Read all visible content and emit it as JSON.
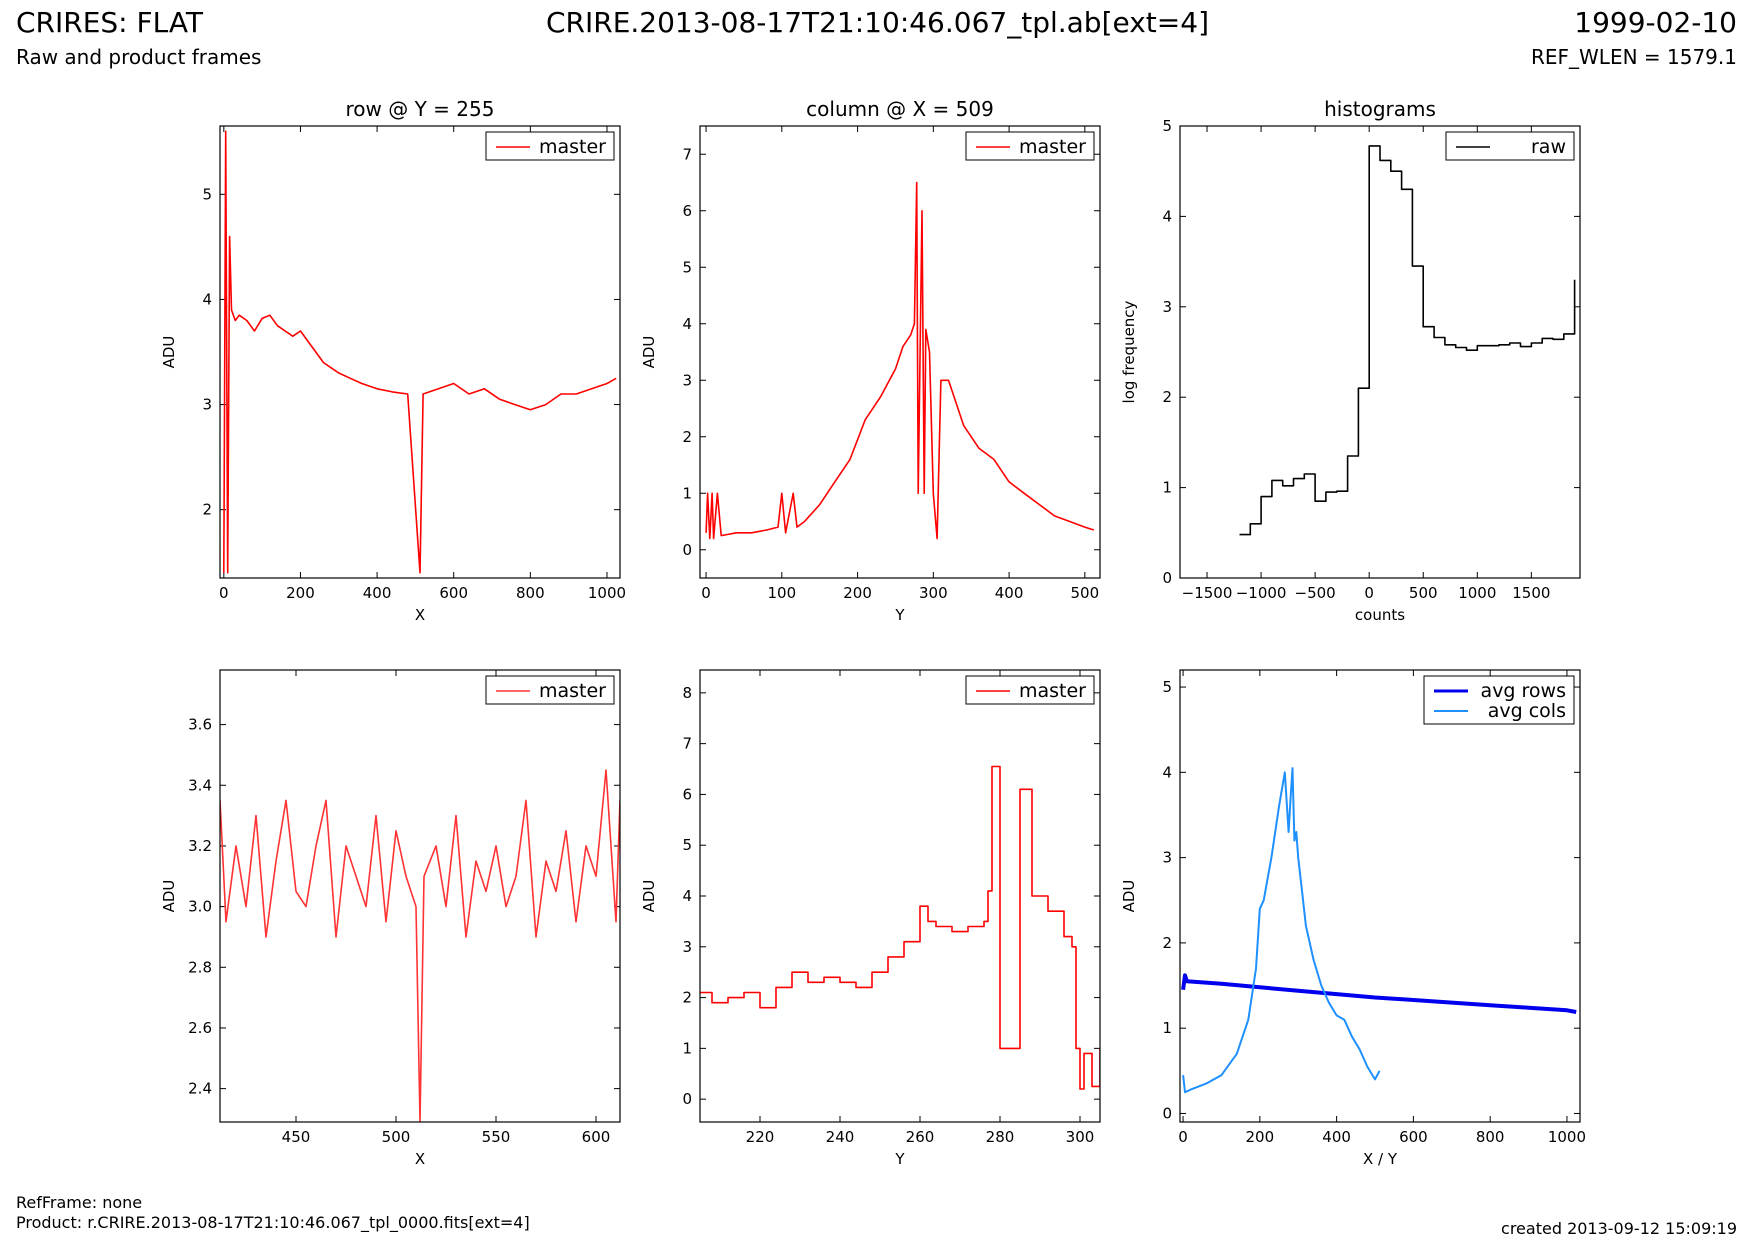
{
  "header": {
    "title_left": "CRIRES: FLAT",
    "subtitle_left": "Raw and product frames",
    "title_center": "CRIRE.2013-08-17T21:10:46.067_tpl.ab[ext=4]",
    "title_right": "1999-02-10",
    "subtitle_right": "REF_WLEN = 1579.1"
  },
  "footer": {
    "refframe": "RefFrame: none",
    "product": "Product: r.CRIRE.2013-08-17T21:10:46.067_tpl_0000.fits[ext=4]",
    "created": "created 2013-09-12 15:09:19"
  },
  "colors": {
    "red": "#ff0000",
    "light_red": "#ff3333",
    "blue": "#0000ee",
    "light_blue": "#1e90ff",
    "black": "#000000"
  },
  "chart_data": [
    {
      "type": "line",
      "title": "row @ Y = 255",
      "xlabel": "X",
      "ylabel": "ADU",
      "xlim": [
        -10,
        1034
      ],
      "ylim": [
        1.35,
        5.65
      ],
      "xticks": [
        0,
        200,
        400,
        600,
        800,
        1000
      ],
      "yticks": [
        2,
        3,
        4,
        5
      ],
      "legend": "top-right",
      "series": [
        {
          "name": "master",
          "color": "#ff0000",
          "x": [
            0,
            5,
            10,
            15,
            20,
            30,
            40,
            60,
            80,
            100,
            120,
            140,
            160,
            180,
            200,
            220,
            240,
            260,
            280,
            300,
            330,
            360,
            400,
            440,
            480,
            512,
            520,
            560,
            600,
            640,
            680,
            720,
            760,
            800,
            840,
            880,
            920,
            960,
            1000,
            1024
          ],
          "y": [
            1.4,
            5.6,
            1.4,
            4.6,
            3.9,
            3.8,
            3.85,
            3.8,
            3.7,
            3.82,
            3.85,
            3.75,
            3.7,
            3.65,
            3.7,
            3.6,
            3.5,
            3.4,
            3.35,
            3.3,
            3.25,
            3.2,
            3.15,
            3.12,
            3.1,
            1.4,
            3.1,
            3.15,
            3.2,
            3.1,
            3.15,
            3.05,
            3.0,
            2.95,
            3.0,
            3.1,
            3.1,
            3.15,
            3.2,
            3.25
          ]
        }
      ]
    },
    {
      "type": "line",
      "title": "column @ X = 509",
      "xlabel": "Y",
      "ylabel": "ADU",
      "xlim": [
        -8,
        520
      ],
      "ylim": [
        -0.5,
        7.5
      ],
      "xticks": [
        0,
        100,
        200,
        300,
        400,
        500
      ],
      "yticks": [
        0,
        1,
        2,
        3,
        4,
        5,
        6,
        7
      ],
      "legend": "top-right",
      "series": [
        {
          "name": "master",
          "color": "#ff0000",
          "x": [
            0,
            2,
            5,
            8,
            10,
            15,
            20,
            40,
            60,
            80,
            95,
            100,
            105,
            115,
            120,
            130,
            150,
            170,
            190,
            210,
            230,
            250,
            260,
            270,
            275,
            278,
            280,
            285,
            288,
            290,
            295,
            300,
            305,
            310,
            320,
            330,
            340,
            360,
            380,
            400,
            420,
            440,
            460,
            480,
            500,
            512
          ],
          "y": [
            0.3,
            1.0,
            0.2,
            1.0,
            0.2,
            1.0,
            0.25,
            0.3,
            0.3,
            0.35,
            0.4,
            1.0,
            0.3,
            1.0,
            0.4,
            0.5,
            0.8,
            1.2,
            1.6,
            2.3,
            2.7,
            3.2,
            3.6,
            3.8,
            4.0,
            6.5,
            1.0,
            6.0,
            1.0,
            3.9,
            3.5,
            1.0,
            0.2,
            3.0,
            3.0,
            2.6,
            2.2,
            1.8,
            1.6,
            1.2,
            1.0,
            0.8,
            0.6,
            0.5,
            0.4,
            0.35
          ]
        }
      ]
    },
    {
      "type": "line",
      "title": "histograms",
      "xlabel": "counts",
      "ylabel": "log frequency",
      "xlim": [
        -1750,
        1950
      ],
      "ylim": [
        0,
        5
      ],
      "xticks": [
        -1500,
        -1000,
        -500,
        0,
        500,
        1000,
        1500
      ],
      "yticks": [
        0,
        1,
        2,
        3,
        4,
        5
      ],
      "legend": "top-right",
      "series": [
        {
          "name": "raw",
          "color": "#000000",
          "step": true,
          "x": [
            -1200,
            -1100,
            -1000,
            -900,
            -800,
            -700,
            -600,
            -500,
            -400,
            -300,
            -200,
            -100,
            0,
            100,
            200,
            300,
            400,
            500,
            600,
            700,
            800,
            900,
            1000,
            1100,
            1200,
            1300,
            1400,
            1500,
            1600,
            1700,
            1800,
            1900
          ],
          "y": [
            0.48,
            0.6,
            0.9,
            1.08,
            1.02,
            1.1,
            1.15,
            0.85,
            0.95,
            0.96,
            1.35,
            2.1,
            4.78,
            4.62,
            4.5,
            4.3,
            3.45,
            2.78,
            2.66,
            2.58,
            2.55,
            2.52,
            2.57,
            2.57,
            2.58,
            2.6,
            2.56,
            2.6,
            2.65,
            2.64,
            2.7,
            3.3
          ]
        }
      ]
    },
    {
      "type": "line",
      "title": "",
      "xlabel": "X",
      "ylabel": "ADU",
      "xlim": [
        412,
        612
      ],
      "ylim": [
        2.29,
        3.78
      ],
      "xticks": [
        450,
        500,
        550,
        600
      ],
      "yticks": [
        2.4,
        2.6,
        2.8,
        3.0,
        3.2,
        3.4,
        3.6
      ],
      "legend": "top-right",
      "series": [
        {
          "name": "master",
          "color": "#ff3333",
          "x": [
            412,
            415,
            420,
            425,
            430,
            435,
            440,
            445,
            450,
            455,
            460,
            465,
            470,
            475,
            480,
            485,
            490,
            495,
            500,
            505,
            510,
            512,
            514,
            520,
            525,
            530,
            535,
            540,
            545,
            550,
            555,
            560,
            565,
            570,
            575,
            580,
            585,
            590,
            595,
            600,
            605,
            610,
            612
          ],
          "y": [
            3.35,
            2.95,
            3.2,
            3.0,
            3.3,
            2.9,
            3.15,
            3.35,
            3.05,
            3.0,
            3.2,
            3.35,
            2.9,
            3.2,
            3.1,
            3.0,
            3.3,
            2.95,
            3.25,
            3.1,
            3.0,
            2.29,
            3.1,
            3.2,
            3.0,
            3.3,
            2.9,
            3.15,
            3.05,
            3.2,
            3.0,
            3.1,
            3.35,
            2.9,
            3.15,
            3.05,
            3.25,
            2.95,
            3.2,
            3.1,
            3.45,
            2.95,
            3.35
          ]
        }
      ]
    },
    {
      "type": "line",
      "title": "",
      "xlabel": "Y",
      "ylabel": "ADU",
      "xlim": [
        205,
        305
      ],
      "ylim": [
        -0.45,
        8.45
      ],
      "xticks": [
        220,
        240,
        260,
        280,
        300
      ],
      "yticks": [
        0,
        1,
        2,
        3,
        4,
        5,
        6,
        7,
        8
      ],
      "legend": "top-right",
      "series": [
        {
          "name": "master",
          "color": "#ff0000",
          "step": true,
          "x": [
            205,
            208,
            212,
            216,
            220,
            224,
            228,
            232,
            236,
            240,
            244,
            248,
            252,
            256,
            260,
            262,
            264,
            268,
            272,
            276,
            277,
            278,
            280,
            284,
            285,
            288,
            292,
            296,
            298,
            299,
            300,
            301,
            303,
            305
          ],
          "y": [
            2.1,
            1.9,
            2.0,
            2.1,
            1.8,
            2.2,
            2.5,
            2.3,
            2.4,
            2.3,
            2.2,
            2.5,
            2.8,
            3.1,
            3.8,
            3.5,
            3.4,
            3.3,
            3.4,
            3.5,
            4.1,
            6.55,
            1.0,
            1.0,
            6.1,
            4.0,
            3.7,
            3.2,
            3.0,
            1.0,
            0.2,
            0.9,
            0.25,
            1.0
          ]
        }
      ]
    },
    {
      "type": "line",
      "title": "",
      "xlabel": "X / Y",
      "ylabel": "ADU",
      "xlim": [
        -8,
        1034
      ],
      "ylim": [
        -0.1,
        5.2
      ],
      "xticks": [
        0,
        200,
        400,
        600,
        800,
        1000
      ],
      "yticks": [
        0,
        1,
        2,
        3,
        4,
        5
      ],
      "legend": "top-right",
      "series": [
        {
          "name": "avg rows",
          "color": "#0000ee",
          "width": 4,
          "x": [
            0,
            5,
            10,
            100,
            200,
            300,
            400,
            500,
            600,
            700,
            800,
            900,
            1000,
            1024
          ],
          "y": [
            1.45,
            1.62,
            1.55,
            1.52,
            1.48,
            1.44,
            1.4,
            1.36,
            1.33,
            1.3,
            1.27,
            1.24,
            1.21,
            1.19
          ]
        },
        {
          "name": "avg cols",
          "color": "#1e90ff",
          "width": 2,
          "x": [
            0,
            5,
            20,
            60,
            100,
            140,
            170,
            190,
            200,
            210,
            230,
            250,
            265,
            275,
            280,
            285,
            290,
            295,
            300,
            310,
            320,
            340,
            360,
            380,
            400,
            420,
            440,
            460,
            480,
            500,
            512
          ],
          "y": [
            0.45,
            0.25,
            0.28,
            0.35,
            0.45,
            0.7,
            1.1,
            1.7,
            2.4,
            2.5,
            3.0,
            3.6,
            4.0,
            3.3,
            3.7,
            4.05,
            3.2,
            3.3,
            3.0,
            2.6,
            2.2,
            1.8,
            1.5,
            1.3,
            1.15,
            1.1,
            0.9,
            0.75,
            0.55,
            0.4,
            0.5
          ]
        }
      ]
    }
  ]
}
